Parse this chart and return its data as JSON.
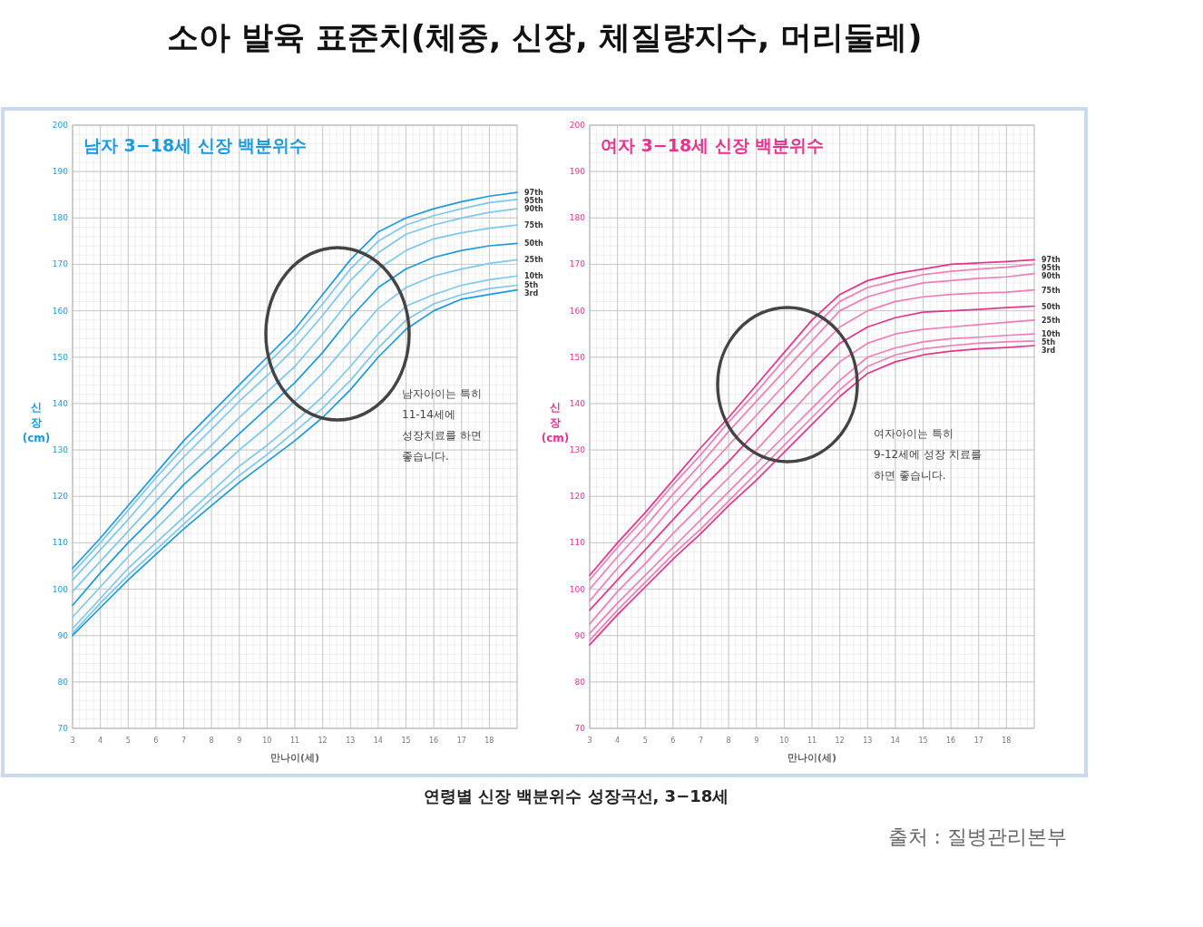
{
  "chart_data": [
    {
      "type": "other",
      "title": "소아 발육 표준치(체중, 신장, 체질량지수, 머리둘레)",
      "annotations": [
        "연령별 신장 백분위수 성장곡선, 3−18세",
        "출처 : 질병관리본부"
      ]
    },
    {
      "type": "line",
      "title": "남자 3−18세 신장 백분위수",
      "xlabel": "만나이(세)",
      "ylabel": "신\n장\n(cm)",
      "x": [
        3,
        4,
        5,
        6,
        7,
        8,
        9,
        10,
        11,
        12,
        13,
        14,
        15,
        16,
        17,
        18,
        19
      ],
      "xlim": [
        3,
        19
      ],
      "xticks": [
        3,
        4,
        5,
        6,
        7,
        8,
        9,
        10,
        11,
        12,
        13,
        14,
        15,
        16,
        17,
        18
      ],
      "ylim": [
        70,
        200
      ],
      "yticks": [
        70,
        80,
        90,
        100,
        110,
        120,
        130,
        140,
        150,
        160,
        170,
        180,
        190,
        200
      ],
      "grid": true,
      "legend": false,
      "marker": "none",
      "line_style": "solid",
      "annotations": [
        "남자아이는 특히\n11-14세에\n성장치료를 하면\n좋습니다."
      ],
      "series": [
        {
          "name": "97th",
          "color": "#1a9be0",
          "values": [
            104.5,
            111,
            118,
            125,
            132,
            138,
            144,
            150,
            156,
            163.5,
            171,
            177,
            180,
            182,
            183.5,
            184.7,
            185.5
          ]
        },
        {
          "name": "95th",
          "color": "#7cc8ef",
          "values": [
            103.5,
            110,
            117,
            124,
            130.5,
            136.5,
            142.5,
            148.5,
            154.5,
            161.5,
            169,
            175,
            178.5,
            180.5,
            182,
            183.3,
            184
          ]
        },
        {
          "name": "90th",
          "color": "#7cc8ef",
          "values": [
            102,
            108.5,
            115,
            122,
            128.5,
            134.5,
            140.5,
            146,
            152,
            159,
            166.5,
            172.5,
            176.5,
            178.5,
            180,
            181.2,
            182
          ]
        },
        {
          "name": "75th",
          "color": "#7cc8ef",
          "values": [
            99.5,
            106,
            112.5,
            119,
            125.5,
            131,
            137,
            142.5,
            148,
            155,
            162.5,
            169,
            173,
            175.5,
            176.8,
            177.8,
            178.5
          ]
        },
        {
          "name": "50th",
          "color": "#1a9be0",
          "values": [
            96.5,
            103.5,
            110,
            116,
            122.5,
            128,
            133.5,
            139,
            144.5,
            151,
            158.5,
            165,
            169,
            171.5,
            173,
            174,
            174.5
          ]
        },
        {
          "name": "25th",
          "color": "#7cc8ef",
          "values": [
            94,
            100.5,
            107,
            113,
            119,
            124.5,
            130,
            135,
            140.5,
            146.5,
            153.5,
            160.5,
            165,
            167.5,
            169,
            170.2,
            171
          ]
        },
        {
          "name": "10th",
          "color": "#7cc8ef",
          "values": [
            91.5,
            98,
            104.5,
            110,
            115.5,
            121,
            126.5,
            131,
            136,
            141.5,
            148,
            155,
            161,
            163.5,
            165.5,
            166.7,
            167.5
          ]
        },
        {
          "name": "5th",
          "color": "#7cc8ef",
          "values": [
            90.5,
            97,
            103,
            108.5,
            114,
            119.5,
            124.5,
            129,
            134,
            139,
            145,
            152,
            158,
            161.5,
            163.5,
            164.8,
            165.5
          ]
        },
        {
          "name": "3rd",
          "color": "#1a9be0",
          "values": [
            90,
            96,
            102,
            107.5,
            113,
            118,
            123,
            127.5,
            132,
            137,
            143,
            150,
            156,
            160,
            162.5,
            163.5,
            164.5
          ]
        }
      ]
    },
    {
      "type": "line",
      "title": "여자 3−18세 신장 백분위수",
      "xlabel": "만나이(세)",
      "ylabel": "신\n장\n(cm)",
      "x": [
        3,
        4,
        5,
        6,
        7,
        8,
        9,
        10,
        11,
        12,
        13,
        14,
        15,
        16,
        17,
        18,
        19
      ],
      "xlim": [
        3,
        19
      ],
      "xticks": [
        3,
        4,
        5,
        6,
        7,
        8,
        9,
        10,
        11,
        12,
        13,
        14,
        15,
        16,
        17,
        18
      ],
      "ylim": [
        70,
        200
      ],
      "yticks": [
        70,
        80,
        90,
        100,
        110,
        120,
        130,
        140,
        150,
        160,
        170,
        180,
        190,
        200
      ],
      "grid": true,
      "legend": false,
      "marker": "none",
      "line_style": "solid",
      "annotations": [
        "여자아이는 특히\n9-12세에 성장 치료를\n하면 좋습니다."
      ],
      "series": [
        {
          "name": "97th",
          "color": "#e8338c",
          "values": [
            103,
            110,
            116.5,
            123.5,
            130.5,
            137,
            144,
            151,
            158,
            163.5,
            166.5,
            168,
            169,
            170,
            170.3,
            170.6,
            171
          ]
        },
        {
          "name": "95th",
          "color": "#f27db8",
          "values": [
            102,
            109,
            115.5,
            122.5,
            129,
            136,
            142.5,
            149.5,
            156,
            162,
            165,
            166.5,
            167.8,
            168.5,
            169,
            169.4,
            170
          ]
        },
        {
          "name": "90th",
          "color": "#f27db8",
          "values": [
            100,
            107,
            113.5,
            120.5,
            127,
            134,
            140.5,
            147,
            153.5,
            160,
            163,
            164.7,
            166,
            166.5,
            167,
            167.3,
            168
          ]
        },
        {
          "name": "75th",
          "color": "#f27db8",
          "values": [
            97.5,
            104.5,
            111,
            118,
            124.5,
            131,
            137.5,
            144,
            150.5,
            156.5,
            160,
            162,
            163,
            163.5,
            163.8,
            164,
            164.5
          ]
        },
        {
          "name": "50th",
          "color": "#e8338c",
          "values": [
            95.5,
            102,
            108.5,
            115,
            121.5,
            127.5,
            134,
            140.5,
            147,
            153,
            156.5,
            158.5,
            159.7,
            160,
            160.3,
            160.7,
            161
          ]
        },
        {
          "name": "25th",
          "color": "#f27db8",
          "values": [
            92.5,
            99.5,
            105.5,
            112,
            118,
            124,
            130,
            136.5,
            143,
            149,
            153,
            155,
            156,
            156.5,
            157,
            157.5,
            158
          ]
        },
        {
          "name": "10th",
          "color": "#f27db8",
          "values": [
            90.5,
            97,
            103,
            109,
            115,
            121,
            127,
            133,
            139,
            145,
            150,
            152,
            153.3,
            154,
            154.3,
            154.7,
            155
          ]
        },
        {
          "name": "5th",
          "color": "#f27db8",
          "values": [
            89,
            95.5,
            101.5,
            107.5,
            113,
            119,
            125,
            131,
            137,
            143,
            148,
            150.5,
            151.8,
            152.5,
            153,
            153.3,
            153.5
          ]
        },
        {
          "name": "3rd",
          "color": "#e8338c",
          "values": [
            88,
            94.5,
            100.5,
            106.5,
            112,
            118,
            123.5,
            129.5,
            135.5,
            141.5,
            146.5,
            149,
            150.5,
            151.3,
            151.8,
            152.1,
            152.5
          ]
        }
      ]
    }
  ]
}
